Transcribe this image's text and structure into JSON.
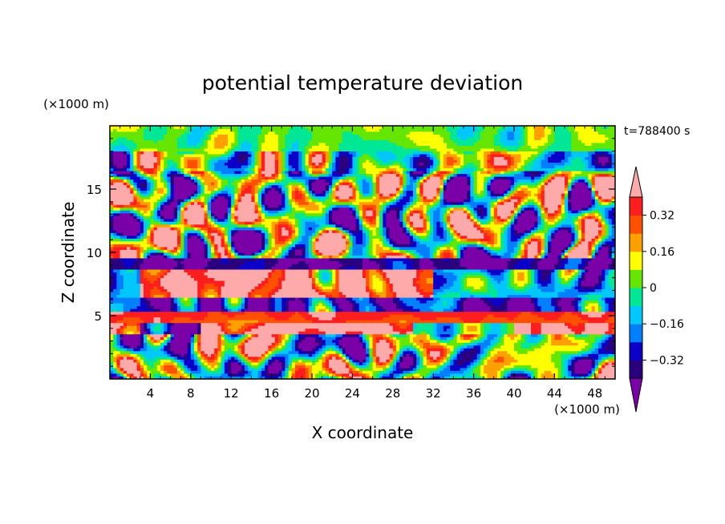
{
  "chart_data": {
    "type": "heatmap",
    "title": "potential temperature deviation",
    "xlabel": "X coordinate",
    "ylabel": "Z coordinate",
    "x_unit": "(×1000 m)",
    "y_unit": "(×1000 m)",
    "time_label": "t=788400 s",
    "xlim": [
      0,
      50
    ],
    "ylim": [
      0,
      20
    ],
    "x_ticks": [
      4,
      8,
      12,
      16,
      20,
      24,
      28,
      32,
      36,
      40,
      44,
      48
    ],
    "y_ticks": [
      5,
      10,
      15
    ],
    "colorbar": {
      "levels": [
        -0.4,
        -0.32,
        -0.24,
        -0.16,
        -0.08,
        0,
        0.08,
        0.16,
        0.24,
        0.32,
        0.4
      ],
      "labels": [
        "0.32",
        "0.16",
        "0",
        "−0.16",
        "−0.32"
      ],
      "label_values": [
        0.32,
        0.16,
        0,
        -0.16,
        -0.32
      ],
      "colors": [
        "#7a00a8",
        "#2a007f",
        "#0a00c8",
        "#0080ff",
        "#00c8ff",
        "#00e896",
        "#64e600",
        "#ffff00",
        "#ffa000",
        "#ff5000",
        "#ff1e1e",
        "#ffaaaa"
      ],
      "extend": "both"
    }
  }
}
